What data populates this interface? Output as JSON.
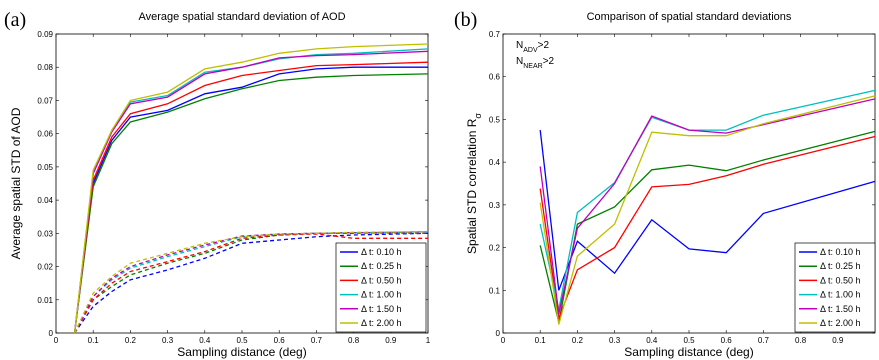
{
  "chart_data": [
    {
      "type": "line",
      "panel_label": "(a)",
      "title": "Average spatial standard deviation of AOD",
      "xlabel": "Sampling distance (deg)",
      "ylabel": "Average spatial STD of AOD",
      "xlim": [
        0,
        1
      ],
      "ylim": [
        0,
        0.09
      ],
      "xticks": [
        0,
        0.1,
        0.2,
        0.3,
        0.4,
        0.5,
        0.6,
        0.7,
        0.8,
        0.9,
        1
      ],
      "xtick_labels": [
        "0",
        "0.1",
        "0.2",
        "0.3",
        "0.4",
        "0.5",
        "0.6",
        "0.7",
        "0.8",
        "0.9",
        "1"
      ],
      "yticks": [
        0,
        0.01,
        0.02,
        0.03,
        0.04,
        0.05,
        0.06,
        0.07,
        0.08,
        0.09
      ],
      "ytick_labels": [
        "0",
        "0.01",
        "0.02",
        "0.03",
        "0.04",
        "0.05",
        "0.06",
        "0.07",
        "0.08",
        "0.09"
      ],
      "legend_position": "bottom-right",
      "grid": false,
      "series": [
        {
          "name": "Δ t: 0.10 h",
          "color": "#0000ff",
          "style": "solid",
          "x": [
            0.05,
            0.1,
            0.15,
            0.2,
            0.3,
            0.4,
            0.5,
            0.6,
            0.7,
            0.8,
            1.0
          ],
          "y": [
            0,
            0.045,
            0.058,
            0.065,
            0.067,
            0.072,
            0.074,
            0.078,
            0.0795,
            0.08,
            0.08
          ]
        },
        {
          "name": "Δ t: 0.25 h",
          "color": "#008000",
          "style": "solid",
          "x": [
            0.05,
            0.1,
            0.15,
            0.2,
            0.3,
            0.4,
            0.5,
            0.6,
            0.7,
            0.8,
            1.0
          ],
          "y": [
            0,
            0.044,
            0.057,
            0.0635,
            0.0665,
            0.0705,
            0.0735,
            0.076,
            0.077,
            0.0775,
            0.078
          ]
        },
        {
          "name": "Δ t: 0.50 h",
          "color": "#ff0000",
          "style": "solid",
          "x": [
            0.05,
            0.1,
            0.15,
            0.2,
            0.3,
            0.4,
            0.5,
            0.6,
            0.7,
            0.8,
            1.0
          ],
          "y": [
            0,
            0.046,
            0.059,
            0.066,
            0.069,
            0.0745,
            0.0775,
            0.079,
            0.0805,
            0.0808,
            0.0815
          ]
        },
        {
          "name": "Δ t: 1.00 h",
          "color": "#00bfbf",
          "style": "solid",
          "x": [
            0.05,
            0.1,
            0.15,
            0.2,
            0.3,
            0.4,
            0.5,
            0.6,
            0.7,
            0.8,
            1.0
          ],
          "y": [
            0,
            0.048,
            0.061,
            0.0695,
            0.0715,
            0.0785,
            0.08,
            0.0825,
            0.0838,
            0.0842,
            0.0855
          ]
        },
        {
          "name": "Δ t: 1.50 h",
          "color": "#bf00bf",
          "style": "solid",
          "x": [
            0.05,
            0.1,
            0.15,
            0.2,
            0.3,
            0.4,
            0.5,
            0.6,
            0.7,
            0.8,
            1.0
          ],
          "y": [
            0,
            0.048,
            0.0605,
            0.069,
            0.071,
            0.078,
            0.08,
            0.0828,
            0.0835,
            0.0838,
            0.0848
          ]
        },
        {
          "name": "Δ t: 2.00 h",
          "color": "#bfbf00",
          "style": "solid",
          "x": [
            0.05,
            0.1,
            0.15,
            0.2,
            0.3,
            0.4,
            0.5,
            0.6,
            0.7,
            0.8,
            1.0
          ],
          "y": [
            0,
            0.049,
            0.061,
            0.07,
            0.0725,
            0.0795,
            0.0815,
            0.0842,
            0.0855,
            0.0862,
            0.087
          ]
        },
        {
          "name": "Δ t: 0.10 h (dashed)",
          "color": "#0000ff",
          "style": "dashed",
          "x": [
            0.05,
            0.1,
            0.15,
            0.2,
            0.3,
            0.4,
            0.5,
            0.6,
            0.7,
            0.8,
            1.0
          ],
          "y": [
            0,
            0.008,
            0.0125,
            0.016,
            0.019,
            0.0225,
            0.027,
            0.028,
            0.029,
            0.0295,
            0.03
          ]
        },
        {
          "name": "Δ t: 0.25 h (dashed)",
          "color": "#008000",
          "style": "dashed",
          "x": [
            0.05,
            0.1,
            0.15,
            0.2,
            0.3,
            0.4,
            0.5,
            0.6,
            0.7,
            0.8,
            1.0
          ],
          "y": [
            0,
            0.01,
            0.014,
            0.0175,
            0.021,
            0.024,
            0.028,
            0.0295,
            0.03,
            0.03,
            0.0305
          ]
        },
        {
          "name": "Δ t: 0.50 h (dashed)",
          "color": "#ff0000",
          "style": "dashed",
          "x": [
            0.05,
            0.1,
            0.15,
            0.2,
            0.3,
            0.4,
            0.5,
            0.6,
            0.7,
            0.8,
            1.0
          ],
          "y": [
            0,
            0.01,
            0.015,
            0.0185,
            0.0215,
            0.0245,
            0.0285,
            0.0295,
            0.0298,
            0.0285,
            0.0285
          ]
        },
        {
          "name": "Δ t: 1.00 h (dashed)",
          "color": "#00bfbf",
          "style": "dashed",
          "x": [
            0.05,
            0.1,
            0.15,
            0.2,
            0.3,
            0.4,
            0.5,
            0.6,
            0.7,
            0.8,
            1.0
          ],
          "y": [
            0,
            0.011,
            0.016,
            0.0195,
            0.023,
            0.026,
            0.029,
            0.0298,
            0.03,
            0.0302,
            0.0305
          ]
        },
        {
          "name": "Δ t: 1.50 h (dashed)",
          "color": "#bf00bf",
          "style": "dashed",
          "x": [
            0.05,
            0.1,
            0.15,
            0.2,
            0.3,
            0.4,
            0.5,
            0.6,
            0.7,
            0.8,
            1.0
          ],
          "y": [
            0,
            0.011,
            0.0165,
            0.02,
            0.0235,
            0.0265,
            0.0292,
            0.0298,
            0.03,
            0.0302,
            0.03
          ]
        },
        {
          "name": "Δ t: 2.00 h (dashed)",
          "color": "#bfbf00",
          "style": "dashed",
          "x": [
            0.05,
            0.1,
            0.15,
            0.2,
            0.3,
            0.4,
            0.5,
            0.6,
            0.7,
            0.8,
            1.0
          ],
          "y": [
            0,
            0.012,
            0.017,
            0.021,
            0.024,
            0.027,
            0.029,
            0.0298,
            0.03,
            0.0303,
            0.0305
          ]
        }
      ],
      "legend": [
        "Δ t: 0.10 h",
        "Δ t: 0.25 h",
        "Δ t: 0.50 h",
        "Δ t: 1.00 h",
        "Δ t: 1.50 h",
        "Δ t: 2.00 h"
      ]
    },
    {
      "type": "line",
      "panel_label": "(b)",
      "title": "Comparison of spatial standard deviations",
      "xlabel": "Sampling distance (deg)",
      "ylabel": "Spatial STD correlation R",
      "ylabel_sub": "σ",
      "xlim": [
        0,
        1
      ],
      "ylim": [
        0,
        0.7
      ],
      "xticks": [
        0,
        0.1,
        0.2,
        0.3,
        0.4,
        0.5,
        0.6,
        0.7,
        0.8,
        0.9
      ],
      "xtick_labels": [
        "0",
        "0.1",
        "0.2",
        "0.3",
        "0.4",
        "0.5",
        "0.6",
        "0.7",
        "0.8",
        "0.9"
      ],
      "yticks": [
        0,
        0.1,
        0.2,
        0.3,
        0.4,
        0.5,
        0.6,
        0.7
      ],
      "ytick_labels": [
        "0",
        "0.1",
        "0.2",
        "0.3",
        "0.4",
        "0.5",
        "0.6",
        "0.7"
      ],
      "annotations": [
        {
          "base": "N",
          "sub": "ADV",
          "rest": ">2"
        },
        {
          "base": "N",
          "sub": "NEAR",
          "rest": ">2"
        }
      ],
      "legend_position": "bottom-right",
      "grid": false,
      "series": [
        {
          "name": "Δ t: 0.10 h",
          "color": "#0000ff",
          "x": [
            0.1,
            0.15,
            0.2,
            0.3,
            0.4,
            0.5,
            0.6,
            0.7,
            1.0
          ],
          "y": [
            0.475,
            0.1,
            0.215,
            0.14,
            0.265,
            0.197,
            0.188,
            0.28,
            0.355
          ]
        },
        {
          "name": "Δ t: 0.25 h",
          "color": "#008000",
          "x": [
            0.1,
            0.15,
            0.2,
            0.3,
            0.4,
            0.5,
            0.6,
            0.7,
            1.0
          ],
          "y": [
            0.205,
            0.025,
            0.255,
            0.295,
            0.382,
            0.393,
            0.38,
            0.405,
            0.472
          ]
        },
        {
          "name": "Δ t: 0.50 h",
          "color": "#ff0000",
          "x": [
            0.1,
            0.15,
            0.2,
            0.3,
            0.4,
            0.5,
            0.6,
            0.7,
            1.0
          ],
          "y": [
            0.338,
            0.035,
            0.148,
            0.2,
            0.342,
            0.348,
            0.368,
            0.395,
            0.46
          ]
        },
        {
          "name": "Δ t: 1.00 h",
          "color": "#00bfbf",
          "x": [
            0.1,
            0.15,
            0.2,
            0.3,
            0.4,
            0.5,
            0.6,
            0.7,
            1.0
          ],
          "y": [
            0.255,
            0.055,
            0.282,
            0.352,
            0.505,
            0.475,
            0.475,
            0.51,
            0.568
          ]
        },
        {
          "name": "Δ t: 1.50 h",
          "color": "#bf00bf",
          "x": [
            0.1,
            0.15,
            0.2,
            0.3,
            0.4,
            0.5,
            0.6,
            0.7,
            1.0
          ],
          "y": [
            0.39,
            0.045,
            0.245,
            0.35,
            0.508,
            0.475,
            0.468,
            0.488,
            0.548
          ]
        },
        {
          "name": "Δ t: 2.00 h",
          "color": "#bfbf00",
          "x": [
            0.1,
            0.15,
            0.2,
            0.3,
            0.4,
            0.5,
            0.6,
            0.7,
            1.0
          ],
          "y": [
            0.305,
            0.02,
            0.18,
            0.255,
            0.47,
            0.462,
            0.462,
            0.49,
            0.555
          ]
        }
      ],
      "legend": [
        "Δ t: 0.10 h",
        "Δ t: 0.25 h",
        "Δ t: 0.50 h",
        "Δ t: 1.00 h",
        "Δ t: 1.50 h",
        "Δ t: 2.00 h"
      ]
    }
  ]
}
